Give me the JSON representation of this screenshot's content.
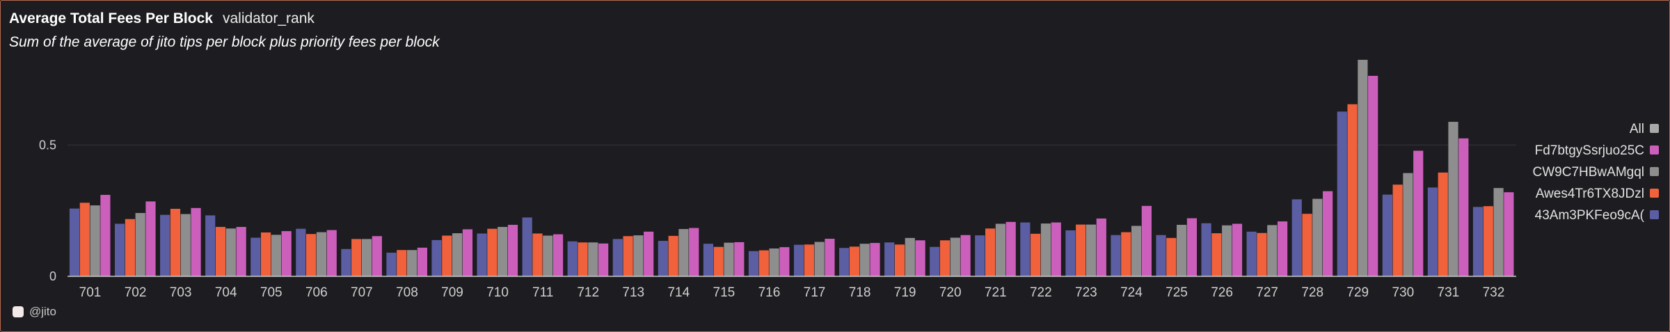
{
  "header": {
    "title": "Average Total Fees Per Block",
    "title_tag": "validator_rank",
    "subtitle": "Sum of the average of jito tips per block plus priority fees per block"
  },
  "footer": {
    "watermark": "@jito",
    "watermark_icon": "jito-logo-icon"
  },
  "chart_data": {
    "type": "bar",
    "ylim": [
      0,
      0.8
    ],
    "yticks": [
      0,
      0.5
    ],
    "ytick_labels": [
      "0",
      "0.5"
    ],
    "grid": true,
    "legend_position": "right",
    "categories": [
      "701",
      "702",
      "703",
      "704",
      "705",
      "706",
      "707",
      "708",
      "709",
      "710",
      "711",
      "712",
      "713",
      "714",
      "715",
      "716",
      "717",
      "718",
      "719",
      "720",
      "721",
      "722",
      "723",
      "724",
      "725",
      "726",
      "727",
      "728",
      "729",
      "730",
      "731",
      "732"
    ],
    "series": [
      {
        "name": "43Am3PKFeo9cA(",
        "color": "#5b5ea3",
        "values": [
          0.258,
          0.2,
          0.234,
          0.232,
          0.147,
          0.181,
          0.104,
          0.09,
          0.138,
          0.163,
          0.224,
          0.133,
          0.142,
          0.135,
          0.124,
          0.096,
          0.12,
          0.108,
          0.129,
          0.112,
          0.156,
          0.205,
          0.175,
          0.157,
          0.157,
          0.202,
          0.17,
          0.293,
          0.627,
          0.311,
          0.338,
          0.264
        ]
      },
      {
        "name": "Awes4Tr6TX8JDzl",
        "color": "#f0613c",
        "values": [
          0.28,
          0.218,
          0.257,
          0.188,
          0.167,
          0.161,
          0.142,
          0.1,
          0.155,
          0.181,
          0.163,
          0.129,
          0.153,
          0.154,
          0.112,
          0.099,
          0.121,
          0.113,
          0.121,
          0.137,
          0.182,
          0.162,
          0.197,
          0.168,
          0.146,
          0.164,
          0.165,
          0.238,
          0.655,
          0.349,
          0.395,
          0.267
        ]
      },
      {
        "name": "CW9C7HBwAMgql",
        "color": "#8e8e8e",
        "values": [
          0.27,
          0.241,
          0.237,
          0.182,
          0.158,
          0.168,
          0.142,
          0.1,
          0.164,
          0.188,
          0.155,
          0.129,
          0.156,
          0.18,
          0.128,
          0.106,
          0.131,
          0.124,
          0.146,
          0.147,
          0.2,
          0.201,
          0.197,
          0.192,
          0.196,
          0.194,
          0.195,
          0.295,
          0.824,
          0.393,
          0.588,
          0.336
        ]
      },
      {
        "name": "Fd7btgySsrjuo25C",
        "color": "#cc5fbc",
        "values": [
          0.31,
          0.285,
          0.26,
          0.188,
          0.172,
          0.176,
          0.153,
          0.109,
          0.179,
          0.196,
          0.16,
          0.125,
          0.17,
          0.184,
          0.13,
          0.111,
          0.143,
          0.127,
          0.137,
          0.157,
          0.207,
          0.205,
          0.22,
          0.268,
          0.221,
          0.2,
          0.209,
          0.324,
          0.763,
          0.478,
          0.525,
          0.32
        ]
      }
    ],
    "legend": [
      {
        "label": "All",
        "color": "#a9a9a9"
      },
      {
        "label": "Fd7btgySsrjuo25C",
        "color": "#cc5fbc"
      },
      {
        "label": "CW9C7HBwAMgql",
        "color": "#8e8e8e"
      },
      {
        "label": "Awes4Tr6TX8JDzl",
        "color": "#f0613c"
      },
      {
        "label": "43Am3PKFeo9cA(",
        "color": "#5b5ea3"
      }
    ],
    "grid_color": "#36353a",
    "axis_color": "#c9c9c9",
    "tick_label_color": "#cfcfcf"
  }
}
